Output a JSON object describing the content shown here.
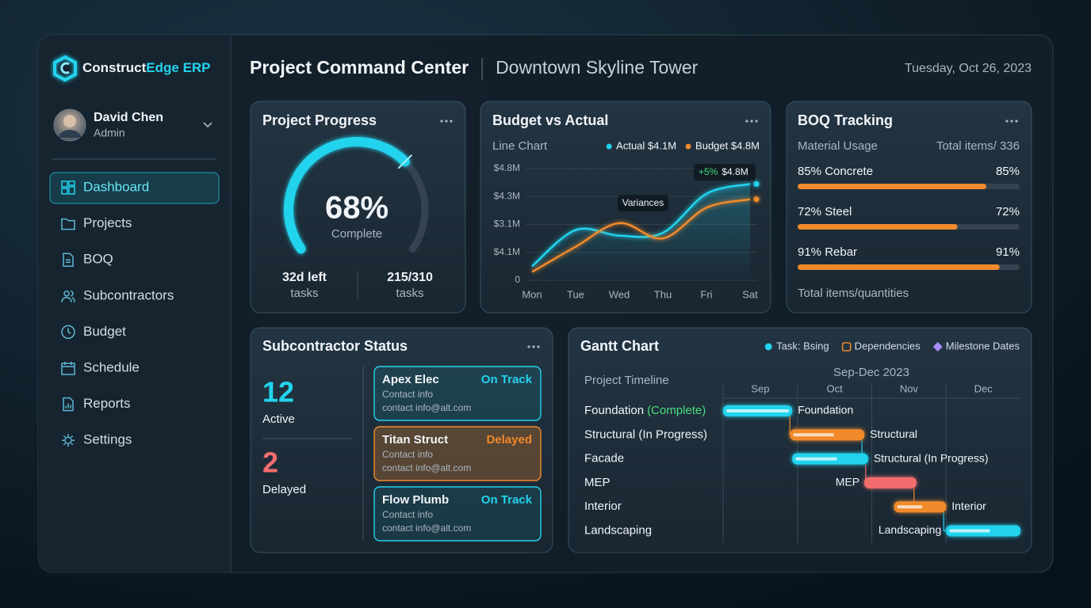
{
  "brand": {
    "name": "Construct",
    "accent": "Edge ERP"
  },
  "user": {
    "name": "David Chen",
    "role": "Admin"
  },
  "nav": [
    {
      "label": "Dashboard",
      "active": true
    },
    {
      "label": "Projects",
      "active": false
    },
    {
      "label": "BOQ",
      "active": false
    },
    {
      "label": "Subcontractors",
      "active": false
    },
    {
      "label": "Budget",
      "active": false
    },
    {
      "label": "Schedule",
      "active": false
    },
    {
      "label": "Reports",
      "active": false
    },
    {
      "label": "Settings",
      "active": false
    }
  ],
  "header": {
    "title": "Project Command Center",
    "subtitle": "Downtown Skyline Tower",
    "date": "Tuesday, Oct 26, 2023"
  },
  "progress": {
    "title": "Project Progress",
    "value": 68,
    "value_label": "68%",
    "caption": "Complete",
    "color": "#22d3ee",
    "stats": [
      {
        "value": "32d left",
        "label": "tasks"
      },
      {
        "value": "215/310",
        "label": "tasks"
      }
    ]
  },
  "budget": {
    "title": "Budget vs Actual",
    "chart_label": "Line Chart",
    "chart_data": {
      "type": "line",
      "categories": [
        "Mon",
        "Tue",
        "Wed",
        "Thu",
        "Fri",
        "Sat"
      ],
      "y_labels": [
        "$4.8M",
        "$4.3M",
        "$3.1M",
        "$4.1M",
        "0"
      ],
      "ylim": [
        0,
        4
      ],
      "series": [
        {
          "name": "Actual $4.1M",
          "color": "#22d3ee",
          "values": [
            0.5,
            1.8,
            1.6,
            1.7,
            3.1,
            3.45
          ]
        },
        {
          "name": "Budget $4.8M",
          "color": "#f08a2c",
          "values": [
            0.3,
            1.2,
            2.05,
            1.5,
            2.6,
            2.9
          ]
        }
      ],
      "annotations": {
        "change": "+5%",
        "value": "$4.8M",
        "note": "Variances"
      }
    }
  },
  "boq": {
    "title": "BOQ Tracking",
    "subtitle": "Material Usage",
    "total": "Total items/ 336",
    "color": "#f08a2c",
    "items": [
      {
        "label": "85% Concrete",
        "value": 85,
        "value_label": "85%"
      },
      {
        "label": "72% Steel",
        "value": 72,
        "value_label": "72%"
      },
      {
        "label": "91% Rebar",
        "value": 91,
        "value_label": "91%"
      }
    ],
    "footer": "Total items/quantities"
  },
  "subcontractors": {
    "title": "Subcontractor Status",
    "active": {
      "value": 12,
      "label": "Active"
    },
    "delayed": {
      "value": 2,
      "label": "Delayed"
    },
    "cards": [
      {
        "name": "Apex Elec",
        "status": "On Track",
        "color": "#22d3ee",
        "contact": "Contact info",
        "email": "contact info@alt.com"
      },
      {
        "name": "Titan Struct",
        "status": "Delayed",
        "color": "#f08a2c",
        "contact": "Contact info",
        "email": "contact info@alt.com"
      },
      {
        "name": "Flow Plumb",
        "status": "On Track",
        "color": "#22d3ee",
        "contact": "Contact info",
        "email": "contact info@alt.com"
      }
    ]
  },
  "gantt": {
    "title": "Gantt Chart",
    "legend": [
      {
        "label": "Task: Bsing",
        "color": "#22d3ee"
      },
      {
        "label": "Dependencies",
        "color": "#f08a2c"
      },
      {
        "label": "Milestone Dates",
        "color": "#a78bfa"
      }
    ],
    "axis_label": "Project Timeline",
    "period": "Sep-Dec 2023",
    "months": [
      "Sep",
      "Oct",
      "Nov",
      "Dec"
    ],
    "xlim": [
      0,
      4
    ],
    "rows": [
      {
        "task": "Foundation",
        "status": "(Complete)",
        "bar_label": "Foundation",
        "start": 0,
        "end": 0.93,
        "progress": 1,
        "color": "#22d3ee"
      },
      {
        "task": "Structural (In Progress)",
        "bar_label": "Structural",
        "start": 0.9,
        "end": 1.9,
        "progress": 0.6,
        "color": "#f08a2c"
      },
      {
        "task": "Facade",
        "bar_label": "Structural (In Progress)",
        "start": 0.93,
        "end": 1.95,
        "progress": 0.6,
        "color": "#22d3ee"
      },
      {
        "task": "MEP",
        "bar_label": "MEP",
        "start": 1.9,
        "end": 2.6,
        "progress": 0,
        "color": "#f26d6d"
      },
      {
        "task": "Interior",
        "bar_label": "Interior",
        "start": 2.3,
        "end": 3.0,
        "progress": 0.55,
        "color": "#f08a2c"
      },
      {
        "task": "Landscaping",
        "bar_label": "Landscaping",
        "start": 3.0,
        "end": 4.0,
        "progress": 0.6,
        "color": "#22d3ee"
      }
    ]
  }
}
